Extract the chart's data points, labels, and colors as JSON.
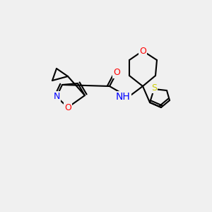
{
  "bg_color": "#f0f0f0",
  "bond_color": "#000000",
  "atom_colors": {
    "O": "#ff0000",
    "N": "#0000ff",
    "S": "#cccc00",
    "C": "#000000",
    "H": "#000000"
  },
  "font_size": 9,
  "bond_width": 1.5
}
